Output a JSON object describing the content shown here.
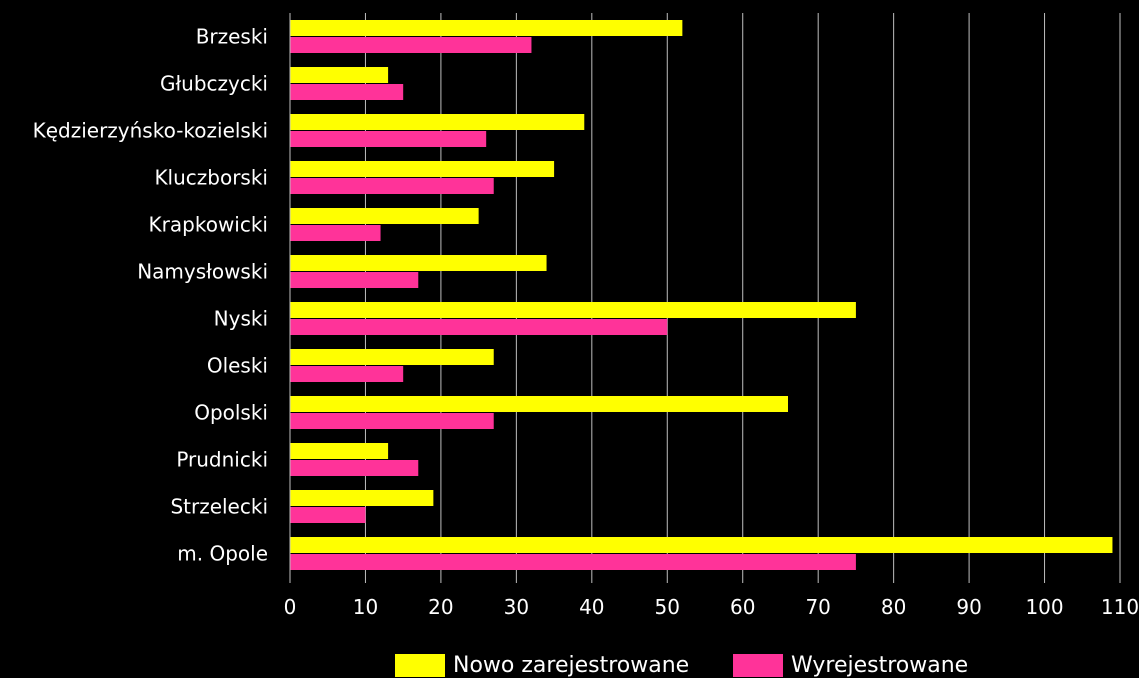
{
  "chart_data": {
    "type": "bar",
    "orientation": "horizontal",
    "title": "",
    "xlabel": "",
    "ylabel": "",
    "categories": [
      "Brzeski",
      "Głubczycki",
      "Kędzierzyńsko-kozielski",
      "Kluczborski",
      "Krapkowicki",
      "Namysłowski",
      "Nyski",
      "Oleski",
      "Opolski",
      "Prudnicki",
      "Strzelecki",
      "m. Opole"
    ],
    "series": [
      {
        "name": "Nowo zarejestrowane",
        "color": "#ffff00",
        "values": [
          52,
          13,
          39,
          35,
          25,
          34,
          75,
          27,
          66,
          13,
          19,
          109
        ]
      },
      {
        "name": "Wyrejestrowane",
        "color": "#ff3399",
        "values": [
          32,
          15,
          26,
          27,
          12,
          17,
          50,
          15,
          27,
          17,
          10,
          75
        ]
      }
    ],
    "xlim": [
      0,
      110
    ],
    "xticks": [
      0,
      10,
      20,
      30,
      40,
      50,
      60,
      70,
      80,
      90,
      100,
      110
    ],
    "grid": true,
    "legend": "bottom",
    "background": "#000000",
    "text_color": "#ffffff",
    "grid_color": "#bfbfbf"
  }
}
